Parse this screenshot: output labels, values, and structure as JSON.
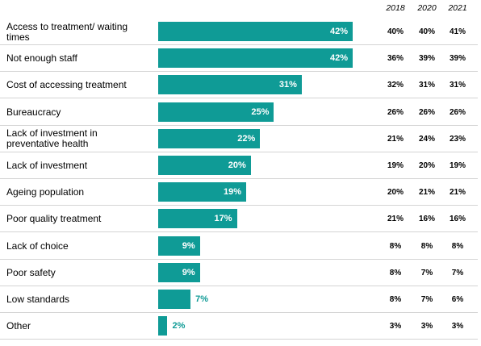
{
  "chart_data": {
    "type": "bar",
    "orientation": "horizontal",
    "categories": [
      "Access to treatment/ waiting times",
      "Not enough staff",
      "Cost of accessing treatment",
      "Bureaucracy",
      "Lack of investment in preventative health",
      "Lack of investment",
      "Ageing population",
      "Poor quality treatment",
      "Lack of choice",
      "Poor safety",
      "Low standards",
      "Other"
    ],
    "values": [
      42,
      42,
      31,
      25,
      22,
      20,
      19,
      17,
      9,
      9,
      7,
      2
    ],
    "value_labels": [
      "42%",
      "42%",
      "31%",
      "25%",
      "22%",
      "20%",
      "19%",
      "17%",
      "9%",
      "9%",
      "7%",
      "2%"
    ],
    "xlim": [
      0,
      100
    ],
    "bar_color": "#0f9b96",
    "grid": false,
    "legend": "none",
    "comparison_columns": {
      "years": [
        "2018",
        "2020",
        "2021"
      ],
      "values": [
        [
          "40%",
          "40%",
          "41%"
        ],
        [
          "36%",
          "39%",
          "39%"
        ],
        [
          "32%",
          "31%",
          "31%"
        ],
        [
          "26%",
          "26%",
          "26%"
        ],
        [
          "21%",
          "24%",
          "23%"
        ],
        [
          "19%",
          "20%",
          "19%"
        ],
        [
          "20%",
          "21%",
          "21%"
        ],
        [
          "21%",
          "16%",
          "16%"
        ],
        [
          "8%",
          "8%",
          "8%"
        ],
        [
          "8%",
          "7%",
          "7%"
        ],
        [
          "8%",
          "7%",
          "6%"
        ],
        [
          "3%",
          "3%",
          "3%"
        ]
      ]
    }
  }
}
